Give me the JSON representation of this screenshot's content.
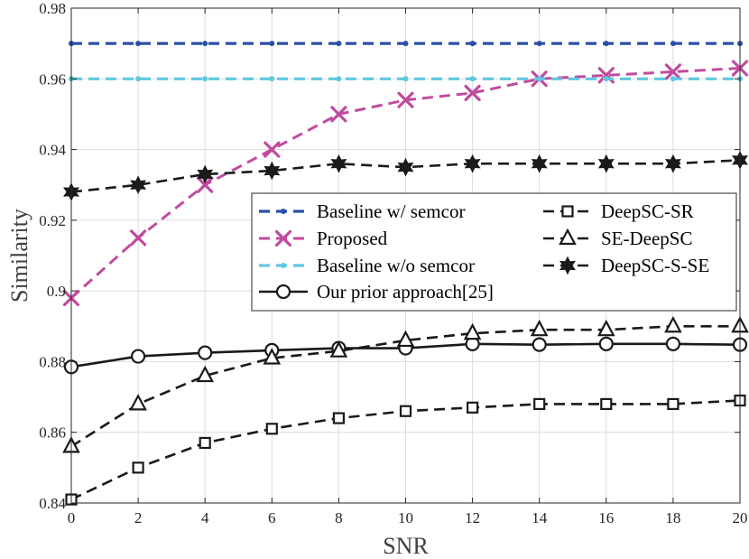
{
  "chart_data": {
    "type": "line",
    "title": "",
    "xlabel": "SNR",
    "ylabel": "Similarity",
    "xlim": [
      0,
      20
    ],
    "ylim": [
      0.84,
      0.98
    ],
    "xticks": [
      0,
      2,
      4,
      6,
      8,
      10,
      12,
      14,
      16,
      18,
      20
    ],
    "xtick_labels": [
      "0",
      "2",
      "4",
      "6",
      "8",
      "10",
      "12",
      "14",
      "16",
      "18",
      "20"
    ],
    "yticks": [
      0.84,
      0.86,
      0.88,
      0.9,
      0.92,
      0.94,
      0.96,
      0.98
    ],
    "ytick_labels": [
      "0.84",
      "0.86",
      "0.88",
      "0.9",
      "0.92",
      "0.94",
      "0.96",
      "0.98"
    ],
    "grid": true,
    "legend_location": "center-right",
    "x": [
      0,
      2,
      4,
      6,
      8,
      10,
      12,
      14,
      16,
      18,
      20
    ],
    "series": [
      {
        "name": "Baseline w/ semcor",
        "color": "#2b4fa8",
        "line_style": "dashed",
        "marker": "dot",
        "values": [
          0.97,
          0.97,
          0.97,
          0.97,
          0.97,
          0.97,
          0.97,
          0.97,
          0.97,
          0.97,
          0.97
        ]
      },
      {
        "name": "Proposed",
        "color": "#c04b9e",
        "line_style": "dashed",
        "marker": "x",
        "values": [
          0.898,
          0.915,
          0.93,
          0.94,
          0.95,
          0.954,
          0.956,
          0.96,
          0.961,
          0.962,
          0.963
        ]
      },
      {
        "name": "Baseline w/o semcor",
        "color": "#5ec8e0",
        "line_style": "dashed",
        "marker": "dot",
        "values": [
          0.96,
          0.96,
          0.96,
          0.96,
          0.96,
          0.96,
          0.96,
          0.96,
          0.96,
          0.96,
          0.96
        ]
      },
      {
        "name": "Our prior approach[25]",
        "color": "#1a1a1a",
        "line_style": "solid",
        "marker": "circle",
        "values": [
          0.8785,
          0.8815,
          0.8825,
          0.8832,
          0.8838,
          0.8838,
          0.885,
          0.8848,
          0.885,
          0.885,
          0.8848
        ]
      },
      {
        "name": "DeepSC-SR",
        "color": "#1a1a1a",
        "line_style": "dashed",
        "marker": "square",
        "values": [
          0.841,
          0.85,
          0.857,
          0.861,
          0.864,
          0.866,
          0.867,
          0.868,
          0.868,
          0.868,
          0.869
        ]
      },
      {
        "name": "SE-DeepSC",
        "color": "#1a1a1a",
        "line_style": "dashed",
        "marker": "triangle",
        "values": [
          0.856,
          0.868,
          0.876,
          0.881,
          0.883,
          0.886,
          0.888,
          0.889,
          0.889,
          0.89,
          0.89
        ]
      },
      {
        "name": "DeepSC-S-SE",
        "color": "#1a1a1a",
        "line_style": "dashed",
        "marker": "hexagram",
        "values": [
          0.928,
          0.93,
          0.933,
          0.934,
          0.936,
          0.935,
          0.936,
          0.936,
          0.936,
          0.936,
          0.937
        ]
      }
    ],
    "legend_columns": [
      [
        "Baseline w/ semcor",
        "Proposed",
        "Baseline w/o semcor",
        "Our prior approach[25]"
      ],
      [
        "DeepSC-SR",
        "SE-DeepSC",
        "DeepSC-S-SE"
      ]
    ]
  }
}
